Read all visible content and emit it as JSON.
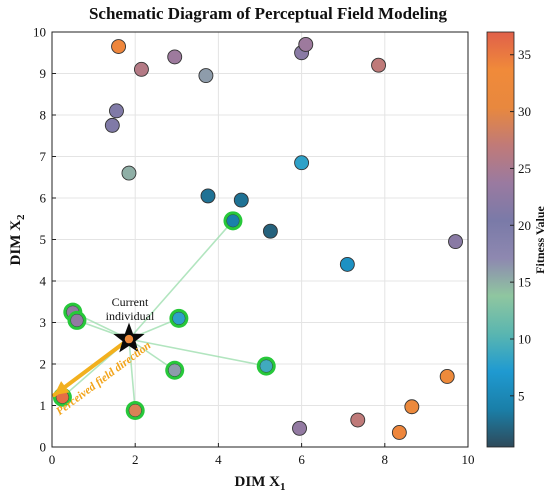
{
  "chart_data": {
    "type": "scatter",
    "title": "Schematic Diagram of Perceptual Field Modeling",
    "xlabel": "DIM X",
    "xlabel_sub": "1",
    "ylabel": "DIM X",
    "ylabel_sub": "2",
    "xlim": [
      0,
      10
    ],
    "ylim": [
      0,
      10
    ],
    "xticks": [
      0,
      2,
      4,
      6,
      8,
      10
    ],
    "yticks": [
      0,
      1,
      2,
      3,
      4,
      5,
      6,
      7,
      8,
      9,
      10
    ],
    "grid": true,
    "colorbar": {
      "label": "Fitness Value",
      "range": [
        0.5,
        37
      ],
      "ticks": [
        5,
        10,
        15,
        20,
        25,
        30,
        35
      ],
      "colormap": [
        "#2e4a5a",
        "#1a7fa8",
        "#1f9ad1",
        "#5ab6b0",
        "#8fc6a0",
        "#8e88b0",
        "#7a7aa8",
        "#9a7aa0",
        "#c07a78",
        "#e8883e",
        "#f08a3a",
        "#e0604a"
      ]
    },
    "current_individual": {
      "x": 1.85,
      "y": 2.6,
      "fitness": 33,
      "label": "Current\nindividual"
    },
    "perceived_direction": {
      "from": [
        1.85,
        2.6
      ],
      "to": [
        0.05,
        1.25
      ],
      "label": "Perceived field direction"
    },
    "points": [
      {
        "x": 1.6,
        "y": 9.65,
        "fitness": 34,
        "perceived": false
      },
      {
        "x": 2.15,
        "y": 9.1,
        "fitness": 26,
        "perceived": false
      },
      {
        "x": 2.95,
        "y": 9.4,
        "fitness": 24,
        "perceived": false
      },
      {
        "x": 3.7,
        "y": 8.95,
        "fitness": 16,
        "perceived": false
      },
      {
        "x": 6.0,
        "y": 9.5,
        "fitness": 22,
        "perceived": false
      },
      {
        "x": 6.1,
        "y": 9.7,
        "fitness": 24,
        "perceived": false
      },
      {
        "x": 7.85,
        "y": 9.2,
        "fitness": 27,
        "perceived": false
      },
      {
        "x": 1.55,
        "y": 8.1,
        "fitness": 21,
        "perceived": false
      },
      {
        "x": 1.45,
        "y": 7.75,
        "fitness": 21,
        "perceived": false
      },
      {
        "x": 1.85,
        "y": 6.6,
        "fitness": 15,
        "perceived": false
      },
      {
        "x": 6.0,
        "y": 6.85,
        "fitness": 8,
        "perceived": false
      },
      {
        "x": 3.75,
        "y": 6.05,
        "fitness": 3,
        "perceived": false
      },
      {
        "x": 4.55,
        "y": 5.95,
        "fitness": 3,
        "perceived": false
      },
      {
        "x": 5.25,
        "y": 5.2,
        "fitness": 2,
        "perceived": false
      },
      {
        "x": 7.1,
        "y": 4.4,
        "fitness": 6,
        "perceived": false
      },
      {
        "x": 9.7,
        "y": 4.95,
        "fitness": 22,
        "perceived": false
      },
      {
        "x": 4.35,
        "y": 5.45,
        "fitness": 4,
        "perceived": true
      },
      {
        "x": 0.5,
        "y": 3.25,
        "fitness": 23,
        "perceived": true
      },
      {
        "x": 0.6,
        "y": 3.05,
        "fitness": 23,
        "perceived": true
      },
      {
        "x": 3.05,
        "y": 3.1,
        "fitness": 8,
        "perceived": true
      },
      {
        "x": 2.95,
        "y": 1.85,
        "fitness": 16,
        "perceived": true
      },
      {
        "x": 5.15,
        "y": 1.95,
        "fitness": 9,
        "perceived": true
      },
      {
        "x": 2.0,
        "y": 0.88,
        "fitness": 29,
        "perceived": true
      },
      {
        "x": 0.25,
        "y": 1.2,
        "fitness": 36,
        "perceived": true
      },
      {
        "x": 9.5,
        "y": 1.7,
        "fitness": 33,
        "perceived": false
      },
      {
        "x": 8.65,
        "y": 0.97,
        "fitness": 32,
        "perceived": false
      },
      {
        "x": 7.35,
        "y": 0.65,
        "fitness": 27,
        "perceived": false
      },
      {
        "x": 5.95,
        "y": 0.45,
        "fitness": 23,
        "perceived": false
      },
      {
        "x": 8.35,
        "y": 0.35,
        "fitness": 34,
        "perceived": false
      }
    ]
  }
}
